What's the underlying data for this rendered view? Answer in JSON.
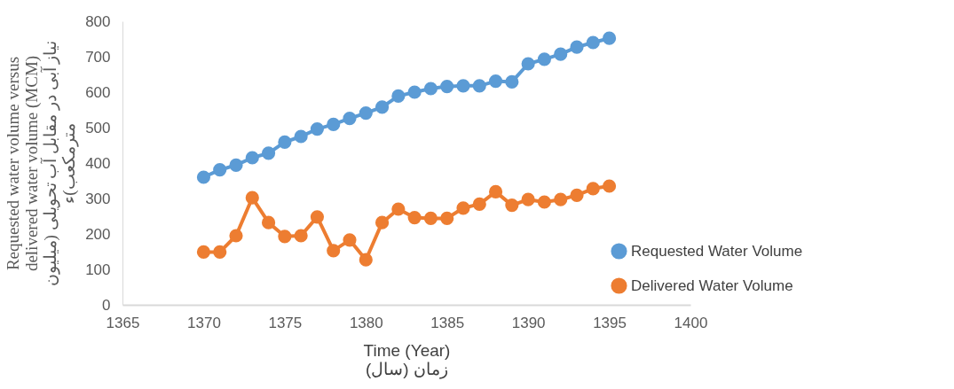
{
  "chart_data": {
    "type": "line",
    "xlabel": "Time (Year)\nزمان (سال)",
    "ylabel": "Requested water volume versus\ndelivered water volume (MCM)\nنیاز آبی  در مقابل آب تحویلی (میلیون\nمترمکعب)ء",
    "x": [
      1370,
      1371,
      1372,
      1373,
      1374,
      1375,
      1376,
      1377,
      1378,
      1379,
      1380,
      1381,
      1382,
      1383,
      1384,
      1385,
      1386,
      1387,
      1388,
      1389,
      1390,
      1391,
      1392,
      1393,
      1394,
      1395
    ],
    "series": [
      {
        "name": "Requested Water Volume",
        "color": "#5b9bd5",
        "values": [
          360,
          381,
          394,
          415,
          428,
          459,
          475,
          496,
          509,
          526,
          541,
          558,
          589,
          600,
          610,
          616,
          618,
          618,
          631,
          629,
          680,
          693,
          707,
          727,
          740,
          752
        ]
      },
      {
        "name": "Delivered Water Volume",
        "color": "#ed7d31",
        "values": [
          149,
          149,
          195,
          302,
          232,
          193,
          195,
          248,
          153,
          183,
          127,
          232,
          270,
          246,
          244,
          244,
          273,
          284,
          319,
          281,
          297,
          290,
          297,
          309,
          328,
          335
        ]
      }
    ],
    "xlim": [
      1365,
      1400
    ],
    "xticks": [
      1365,
      1370,
      1375,
      1380,
      1385,
      1390,
      1395,
      1400
    ],
    "ylim": [
      0,
      800
    ],
    "yticks": [
      0,
      100,
      200,
      300,
      400,
      500,
      600,
      700,
      800
    ],
    "grid": false,
    "legend": "right",
    "marker": "circle",
    "line_style": "solid"
  }
}
